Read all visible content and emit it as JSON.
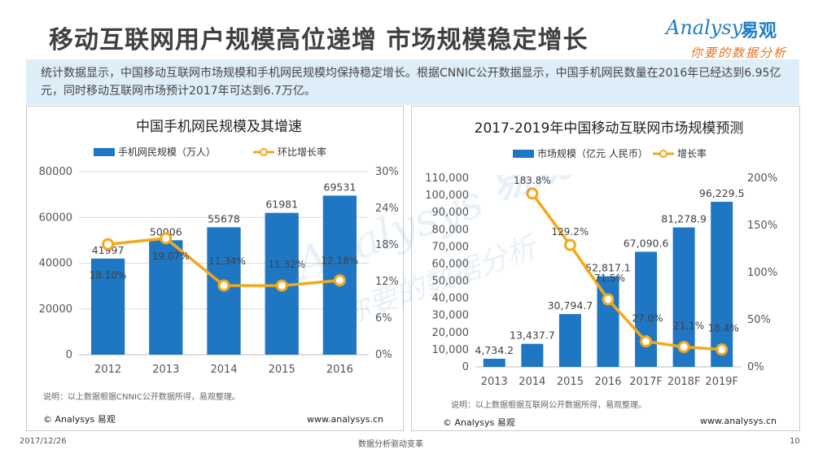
{
  "page": {
    "title": "移动互联网用户规模高位递增 市场规模稳定增长",
    "summary": "统计数据显示，中国移动互联网市场规模和手机网民规模均保持稳定增长。根据CNNIC公开数据显示，中国手机网民数量在2016年已经达到6.95亿元，同时移动互联网市场预计2017年可达到6.7万亿。",
    "logo": {
      "en": "Analysys",
      "cn": "易观",
      "tagline": "你要的数据分析"
    },
    "footer": {
      "date": "2017/12/26",
      "center": "数据分析驱动变革",
      "page": "10"
    },
    "colors": {
      "bar": "#1f77c4",
      "line": "#f2a81c",
      "summary_bg": "#deeef8",
      "grid": "#d9d9d9"
    }
  },
  "chart_data": [
    {
      "type": "bar",
      "title": "中国手机网民规模及其增速",
      "categories": [
        "2012",
        "2013",
        "2014",
        "2015",
        "2016"
      ],
      "series": [
        {
          "name": "手机网民规模（万人）",
          "type": "bar",
          "axis": "left",
          "values": [
            41997,
            50006,
            55678,
            61981,
            69531
          ],
          "labels": [
            "41997",
            "50006",
            "55678",
            "61981",
            "69531"
          ]
        },
        {
          "name": "环比增长率",
          "type": "line",
          "axis": "right",
          "values": [
            18.1,
            19.07,
            11.34,
            11.32,
            12.18
          ],
          "labels": [
            "18.10%",
            "19.07%",
            "11.34%",
            "11.32%",
            "12.18%"
          ]
        }
      ],
      "ylim": [
        0,
        80000
      ],
      "yticks": [
        "0",
        "20000",
        "40000",
        "60000",
        "80000"
      ],
      "y2lim": [
        0,
        30
      ],
      "y2ticks": [
        "0%",
        "6%",
        "12%",
        "18%",
        "24%",
        "30%"
      ],
      "grid": true,
      "legend": "top",
      "note": "说明：以上数据根据CNNIC公开数据所得，易观整理。",
      "copyright": "© Analysys 易观",
      "site": "www.analysys.cn"
    },
    {
      "type": "bar",
      "title": "2017-2019年中国移动互联网市场规模预测",
      "categories": [
        "2013",
        "2014",
        "2015",
        "2016",
        "2017F",
        "2018F",
        "2019F"
      ],
      "series": [
        {
          "name": "市场规模（亿元 人民币）",
          "type": "bar",
          "axis": "left",
          "values": [
            4734.2,
            13437.7,
            30794.7,
            52817.1,
            67090.6,
            81278.9,
            96229.5
          ],
          "labels": [
            "4,734.2",
            "13,437.7",
            "30,794.7",
            "52,817.1",
            "67,090.6",
            "81,278.9",
            "96,229.5"
          ]
        },
        {
          "name": "增长率",
          "type": "line",
          "axis": "right",
          "values": [
            null,
            183.8,
            129.2,
            71.5,
            27.0,
            21.1,
            18.4
          ],
          "labels": [
            "",
            "183.8%",
            "129.2%",
            "71.5%",
            "27.0%",
            "21.1%",
            "18.4%"
          ]
        }
      ],
      "ylim": [
        0,
        110000
      ],
      "yticks": [
        "0",
        "10,000",
        "20,000",
        "30,000",
        "40,000",
        "50,000",
        "60,000",
        "70,000",
        "80,000",
        "90,000",
        "100,000",
        "110,000"
      ],
      "y2lim": [
        0,
        200
      ],
      "y2ticks": [
        "0%",
        "50%",
        "100%",
        "150%",
        "200%"
      ],
      "grid": false,
      "legend": "top",
      "note": "说明：以上数据根据互联网公开数据所得，易观整理。",
      "copyright": "© Analysys 易观",
      "site": "www.analysys.cn"
    }
  ]
}
